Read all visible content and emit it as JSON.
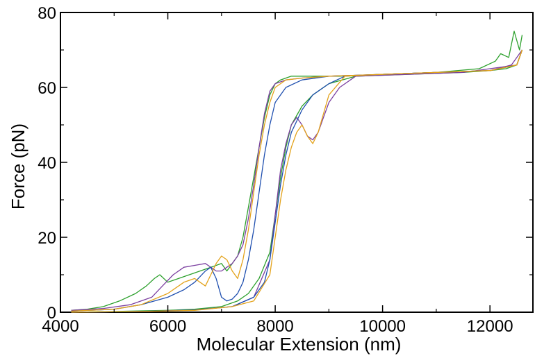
{
  "chart_data": {
    "type": "line",
    "title": "",
    "xlabel": "Molecular Extension (nm)",
    "ylabel": "Force (pN)",
    "xlim": [
      4000,
      12800
    ],
    "ylim": [
      0,
      80
    ],
    "xticks": [
      4000,
      6000,
      8000,
      10000,
      12000
    ],
    "xtick_labels": [
      "4000",
      "6000",
      "8000",
      "10000",
      "12000"
    ],
    "yticks": [
      0,
      20,
      40,
      60,
      80
    ],
    "ytick_labels": [
      "0",
      "20",
      "40",
      "60",
      "80"
    ],
    "grid": false,
    "legend": "none",
    "series": [
      {
        "color": "#2ca02c",
        "x": [
          4200,
          4500,
          4800,
          5100,
          5400,
          5600,
          5750,
          5850,
          6000,
          6200,
          6400,
          6600,
          6800,
          7000,
          7100,
          7200,
          7300,
          7400,
          7500,
          7600,
          7700,
          7800,
          7900,
          8000,
          8100,
          8200,
          8300,
          8500,
          8800,
          9200,
          10000,
          11000,
          11800,
          12100,
          12200,
          12350,
          12450,
          12550,
          12600
        ],
        "y": [
          0.5,
          0.8,
          1.5,
          3,
          5,
          7,
          9,
          10,
          8,
          9,
          10,
          11,
          12,
          13,
          11,
          13,
          15,
          20,
          28,
          36,
          44,
          52,
          58,
          61,
          62,
          62.5,
          63,
          63,
          63,
          63,
          63.5,
          64,
          65,
          67,
          69,
          68,
          75,
          70,
          74
        ]
      },
      {
        "color": "#2ca02c",
        "x": [
          4200,
          5000,
          6000,
          6500,
          7000,
          7300,
          7500,
          7700,
          7900,
          8000,
          8100,
          8200,
          8300,
          8500,
          8700,
          9000,
          9500,
          10500,
          11500,
          12000,
          12300,
          12500,
          12600
        ],
        "y": [
          0,
          0.2,
          0.5,
          0.8,
          1.5,
          3,
          5,
          9,
          16,
          26,
          36,
          44,
          50,
          55,
          58,
          61,
          63,
          63.5,
          64,
          64.5,
          65,
          66,
          70
        ]
      },
      {
        "color": "#7b3fa0",
        "x": [
          4200,
          4800,
          5300,
          5700,
          5900,
          6100,
          6300,
          6500,
          6700,
          6800,
          6900,
          7000,
          7100,
          7200,
          7300,
          7400,
          7500,
          7600,
          7700,
          7800,
          7900,
          8000,
          8200,
          8500,
          9000,
          10000,
          11000,
          12000,
          12400,
          12600
        ],
        "y": [
          0.5,
          1,
          2,
          4,
          7,
          10,
          12,
          12.5,
          13,
          12,
          11,
          11,
          12,
          13,
          15,
          18,
          25,
          34,
          44,
          53,
          59,
          61,
          62,
          62.5,
          63,
          63.5,
          64,
          64.5,
          66,
          70
        ]
      },
      {
        "color": "#7b3fa0",
        "x": [
          4200,
          5500,
          6500,
          7200,
          7600,
          7900,
          8000,
          8100,
          8200,
          8300,
          8400,
          8500,
          8600,
          8700,
          8800,
          8900,
          9000,
          9200,
          9500,
          10500,
          11500,
          12500,
          12600
        ],
        "y": [
          0,
          0.2,
          0.6,
          1.5,
          4,
          14,
          26,
          38,
          45,
          50,
          52,
          50,
          47,
          46,
          48,
          52,
          56,
          60,
          63,
          63.5,
          64,
          66,
          70
        ]
      },
      {
        "color": "#1f4faf",
        "x": [
          4200,
          5000,
          5500,
          6000,
          6300,
          6500,
          6700,
          6800,
          6900,
          7000,
          7100,
          7200,
          7300,
          7400,
          7500,
          7600,
          7700,
          7800,
          7900,
          8000,
          8200,
          8500,
          9000,
          10000,
          11000,
          12000,
          12500,
          12600
        ],
        "y": [
          0.3,
          0.8,
          2,
          4,
          6,
          8,
          11,
          12,
          9,
          4,
          3,
          3.5,
          5,
          8,
          14,
          22,
          32,
          42,
          50,
          56,
          60,
          62,
          63,
          63.5,
          64,
          64.5,
          66,
          70
        ]
      },
      {
        "color": "#1f4faf",
        "x": [
          4200,
          5500,
          6500,
          7200,
          7600,
          7800,
          7900,
          8000,
          8100,
          8200,
          8300,
          8500,
          8700,
          9000,
          9300,
          10000,
          11000,
          12000,
          12500,
          12600
        ],
        "y": [
          0,
          0.2,
          0.6,
          1.5,
          4,
          8,
          14,
          24,
          34,
          42,
          48,
          54,
          58,
          61,
          63,
          63.5,
          64,
          64.5,
          66,
          70
        ]
      },
      {
        "color": "#e3a21a",
        "x": [
          4200,
          5000,
          5500,
          6000,
          6300,
          6500,
          6600,
          6700,
          6800,
          6900,
          7000,
          7100,
          7200,
          7300,
          7400,
          7500,
          7600,
          7700,
          7800,
          7900,
          8000,
          8200,
          8500,
          9000,
          10000,
          11000,
          12000,
          12500,
          12600
        ],
        "y": [
          0.3,
          0.8,
          2,
          5,
          8,
          9,
          8,
          7,
          10,
          13,
          15,
          14,
          11,
          9,
          14,
          22,
          32,
          42,
          50,
          56,
          60,
          62,
          62.5,
          63,
          63.5,
          64,
          64.5,
          66,
          70
        ]
      },
      {
        "color": "#e3a21a",
        "x": [
          4200,
          5500,
          6500,
          7200,
          7600,
          7900,
          8000,
          8100,
          8200,
          8300,
          8400,
          8500,
          8600,
          8700,
          8800,
          8900,
          9000,
          9300,
          10000,
          11000,
          12000,
          12500,
          12600
        ],
        "y": [
          0,
          0.2,
          0.5,
          1.5,
          3,
          10,
          20,
          30,
          38,
          44,
          48,
          50,
          47,
          45,
          48,
          53,
          58,
          63,
          63.5,
          64,
          64.5,
          66,
          70
        ]
      }
    ]
  }
}
